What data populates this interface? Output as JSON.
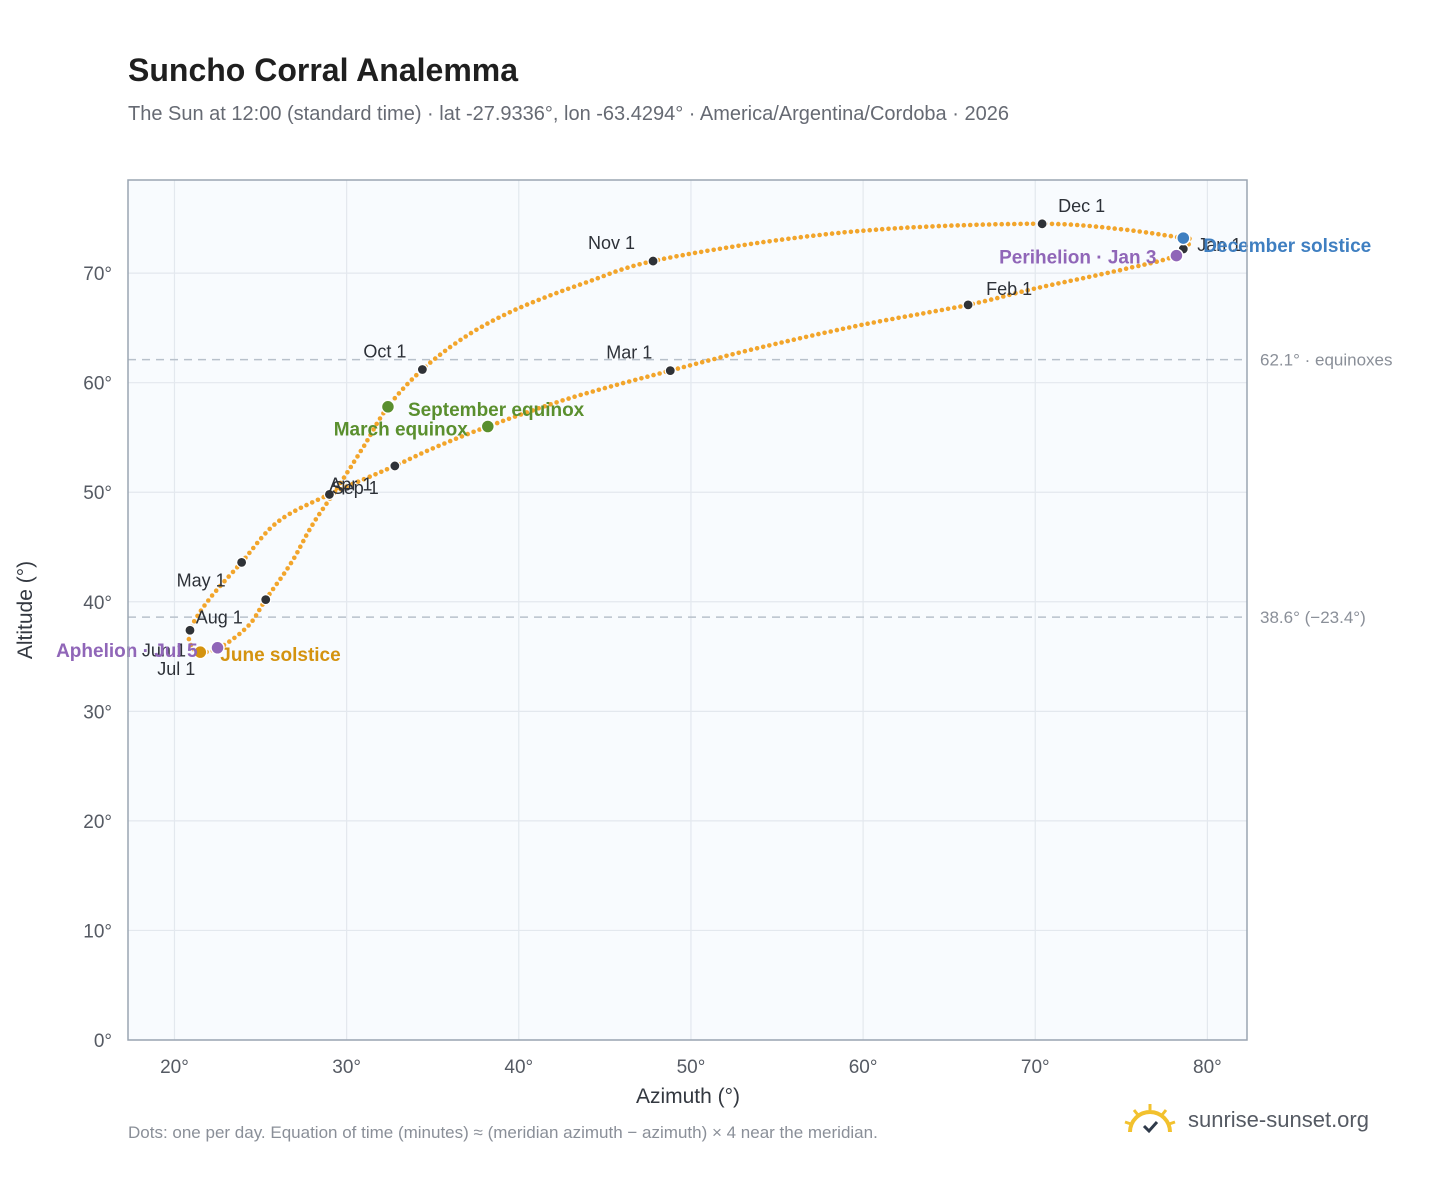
{
  "header": {
    "title": "Suncho Corral Analemma",
    "subtitle": "The Sun at 12:00 (standard time) · lat -27.9336°, lon -63.4294° · America/Argentina/Cordoba · 2026"
  },
  "footer": {
    "note": "Dots: one per day. Equation of time (minutes) ≈ (meridian azimuth − azimuth) × 4 near the meridian.",
    "brand": "sunrise-sunset.org"
  },
  "colors": {
    "curve": "#f2a52b",
    "month_dot": "#2f3237",
    "equinox": "#5a8f2e",
    "june_solstice": "#d4930f",
    "december_solstice": "#3f7fc1",
    "apsis": "#9066b8",
    "plot_bg": "#f8fbfe",
    "grid": "#e3e8ee",
    "reference_line": "#b8c1cb",
    "frame": "#9aa5b2"
  },
  "chart_data": {
    "type": "scatter",
    "title": "Suncho Corral Analemma",
    "xlabel": "Azimuth (°)",
    "ylabel": "Altitude (°)",
    "xlim": [
      17.3,
      82.3
    ],
    "ylim": [
      0,
      78.5
    ],
    "x_ticks": [
      "20°",
      "30°",
      "40°",
      "50°",
      "60°",
      "70°",
      "80°"
    ],
    "y_ticks": [
      "0°",
      "10°",
      "20°",
      "30°",
      "40°",
      "50°",
      "60°",
      "70°"
    ],
    "grid": true,
    "path": [
      [
        78.6,
        73.2
      ],
      [
        79.0,
        73.0
      ],
      [
        78.2,
        71.6
      ],
      [
        75.0,
        70.3
      ],
      [
        70.0,
        68.6
      ],
      [
        66.1,
        67.1
      ],
      [
        60.0,
        65.3
      ],
      [
        54.0,
        63.2
      ],
      [
        48.8,
        61.1
      ],
      [
        43.0,
        58.6
      ],
      [
        38.2,
        56.0
      ],
      [
        35.0,
        54.0
      ],
      [
        32.8,
        52.4
      ],
      [
        29.0,
        49.8
      ],
      [
        26.0,
        47.3
      ],
      [
        23.9,
        43.6
      ],
      [
        22.0,
        40.2
      ],
      [
        20.9,
        37.4
      ],
      [
        21.0,
        35.9
      ],
      [
        21.5,
        35.4
      ],
      [
        22.3,
        35.6
      ],
      [
        23.3,
        36.5
      ],
      [
        24.4,
        38.0
      ],
      [
        25.3,
        40.2
      ],
      [
        26.8,
        43.6
      ],
      [
        28.0,
        47.0
      ],
      [
        29.5,
        50.5
      ],
      [
        31.0,
        54.2
      ],
      [
        32.4,
        57.8
      ],
      [
        34.4,
        61.2
      ],
      [
        37.0,
        64.3
      ],
      [
        40.0,
        66.8
      ],
      [
        44.0,
        69.2
      ],
      [
        47.8,
        71.1
      ],
      [
        55.0,
        73.0
      ],
      [
        62.0,
        74.1
      ],
      [
        70.4,
        74.5
      ],
      [
        75.0,
        74.0
      ],
      [
        78.6,
        73.2
      ]
    ],
    "month_markers": [
      {
        "label": "Jan 1",
        "x": 78.6,
        "y": 72.2
      },
      {
        "label": "Feb 1",
        "x": 66.1,
        "y": 67.1
      },
      {
        "label": "Mar 1",
        "x": 48.8,
        "y": 61.1
      },
      {
        "label": "Apr 1",
        "x": 29.0,
        "y": 49.8
      },
      {
        "label": "May 1",
        "x": 23.9,
        "y": 43.6
      },
      {
        "label": "Jun 1",
        "x": 20.9,
        "y": 37.4
      },
      {
        "label": "Jul 1",
        "x": 21.5,
        "y": 35.4
      },
      {
        "label": "Aug 1",
        "x": 25.3,
        "y": 40.2
      },
      {
        "label": "Sep 1",
        "x": 32.8,
        "y": 52.4
      },
      {
        "label": "Oct 1",
        "x": 34.4,
        "y": 61.2
      },
      {
        "label": "Nov 1",
        "x": 47.8,
        "y": 71.1
      },
      {
        "label": "Dec 1",
        "x": 70.4,
        "y": 74.5
      }
    ],
    "events": [
      {
        "label": "December solstice",
        "x": 78.6,
        "y": 73.2,
        "color": "#3f7fc1"
      },
      {
        "label": "Perihelion · Jan 3",
        "x": 78.2,
        "y": 71.6,
        "color": "#9066b8"
      },
      {
        "label": "March equinox",
        "x": 38.2,
        "y": 56.0,
        "color": "#5a8f2e"
      },
      {
        "label": "September equinox",
        "x": 32.4,
        "y": 57.8,
        "color": "#5a8f2e"
      },
      {
        "label": "June solstice",
        "x": 21.5,
        "y": 35.4,
        "color": "#d4930f"
      },
      {
        "label": "Aphelion · Jul 5",
        "x": 22.5,
        "y": 35.8,
        "color": "#9066b8"
      }
    ],
    "reference_lines": [
      {
        "y": 62.1,
        "label": "62.1° · equinoxes"
      },
      {
        "y": 38.6,
        "label": "38.6° (−23.4°)"
      }
    ]
  }
}
